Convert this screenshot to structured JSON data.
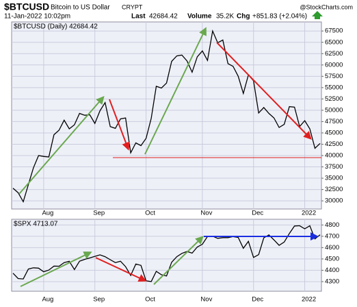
{
  "header": {
    "symbol": "$BTCUSD",
    "name": "Bitcoin to US Dollar",
    "exchange": "CRYPT",
    "date": "11-Jan-2022 10:02pm",
    "last_label": "Last",
    "last": "42684.42",
    "volume_label": "Volume",
    "volume": "35.2K",
    "chg_label": "Chg",
    "chg": "+851.83 (+2.04%)",
    "brand": "@StockCharts.com"
  },
  "chart_data": [
    {
      "type": "line",
      "title": "$BTCUSD (Daily) 42684.42",
      "color": "#000000",
      "categories": [
        null,
        null,
        null,
        null,
        null,
        null,
        "Aug",
        null,
        null,
        null,
        null,
        null,
        null,
        null,
        null,
        null,
        "Sep",
        null,
        null,
        null,
        null,
        null,
        null,
        null,
        null,
        null,
        "Oct",
        null,
        null,
        null,
        null,
        null,
        null,
        null,
        null,
        null,
        null,
        "Nov",
        null,
        null,
        null,
        null,
        null,
        null,
        null,
        null,
        null,
        "Dec",
        null,
        null,
        null,
        null,
        null,
        null,
        null,
        null,
        null,
        "2022",
        null,
        null,
        null
      ],
      "values": [
        32800,
        31800,
        29800,
        33600,
        37300,
        40000,
        39800,
        39700,
        44600,
        45600,
        47800,
        45900,
        46800,
        49300,
        48900,
        49000,
        47100,
        49900,
        51700,
        46400,
        46000,
        48100,
        48300,
        40600,
        42800,
        42200,
        43800,
        48200,
        55300,
        54900,
        56000,
        60800,
        62000,
        62200,
        60900,
        58400,
        61800,
        63100,
        61000,
        67500,
        64900,
        65500,
        60300,
        59700,
        57500,
        53700,
        57800,
        56500,
        49400,
        50600,
        49300,
        48300,
        46200,
        46900,
        50800,
        50700,
        46400,
        47700,
        45900,
        41600,
        42684.42
      ],
      "ylim": [
        28200,
        69500
      ],
      "yticks": [
        30000,
        32500,
        35000,
        37500,
        40000,
        42500,
        45000,
        47500,
        50000,
        52500,
        55000,
        57500,
        60000,
        62500,
        65000,
        67500
      ],
      "grid": true
    },
    {
      "type": "line",
      "title": "$SPX 4713.07",
      "color": "#000000",
      "categories": [
        null,
        null,
        null,
        null,
        null,
        null,
        "Aug",
        null,
        null,
        null,
        null,
        null,
        null,
        null,
        null,
        null,
        "Sep",
        null,
        null,
        null,
        null,
        null,
        null,
        null,
        null,
        null,
        "Oct",
        null,
        null,
        null,
        null,
        null,
        null,
        null,
        null,
        null,
        null,
        "Nov",
        null,
        null,
        null,
        null,
        null,
        null,
        null,
        null,
        null,
        "Dec",
        null,
        null,
        null,
        null,
        null,
        null,
        null,
        null,
        null,
        "2022",
        null,
        null,
        null
      ],
      "values": [
        4374,
        4327,
        4323,
        4411,
        4422,
        4419,
        4387,
        4402,
        4437,
        4436,
        4468,
        4479,
        4406,
        4480,
        4496,
        4509,
        4523,
        4536,
        4520,
        4493,
        4468,
        4480,
        4432,
        4354,
        4455,
        4443,
        4307,
        4300,
        4391,
        4361,
        4350,
        4471,
        4520,
        4549,
        4566,
        4551,
        4605,
        4630,
        4698,
        4701,
        4682,
        4688,
        4688,
        4697,
        4690,
        4594,
        4655,
        4513,
        4538,
        4686,
        4712,
        4668,
        4620,
        4649,
        4725,
        4791,
        4793,
        4766,
        4793,
        4677,
        4713.07
      ],
      "ylim": [
        4215,
        4850
      ],
      "yticks": [
        4300,
        4400,
        4500,
        4600,
        4700,
        4800
      ],
      "grid": true
    }
  ]
}
